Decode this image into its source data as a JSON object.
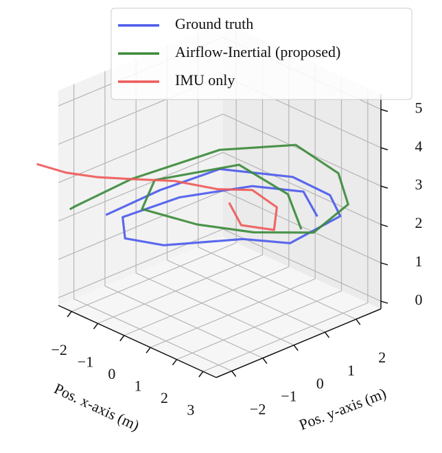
{
  "chart_data": {
    "type": "line3d",
    "xlabel": "Pos. x-axis (m)",
    "ylabel": "Pos. y-axis (m)",
    "xlim": [
      -2.5,
      3.5
    ],
    "ylim": [
      -2.5,
      2.8
    ],
    "zlim": [
      -0.2,
      5.4
    ],
    "xticks": [
      {
        "value": -2,
        "label": "−2"
      },
      {
        "value": -1,
        "label": "−1"
      },
      0,
      1,
      2,
      3
    ],
    "yticks": [
      {
        "value": -2,
        "label": "−2"
      },
      {
        "value": -1,
        "label": "−1"
      },
      0,
      1,
      2
    ],
    "zticks": [
      0,
      1,
      2,
      3,
      4,
      5
    ],
    "grid": true,
    "legend": "upper center",
    "series": [
      {
        "name": "Ground truth",
        "color": "#4a5aec",
        "x": [
          -1.4,
          -1.0,
          -0.5,
          0.5,
          1.8,
          2.9,
          3.0,
          1.8,
          0.8,
          -0.2,
          -1.0,
          -0.5,
          0.5,
          1.5,
          2.5
        ],
        "y": [
          -1.9,
          -0.5,
          1.0,
          2.5,
          2.6,
          2.0,
          0.3,
          -0.2,
          -1.9,
          -2.3,
          -1.7,
          -0.3,
          1.2,
          2.0,
          1.6
        ],
        "z": [
          2.3,
          2.6,
          2.8,
          2.4,
          2.3,
          2.3,
          2.2,
          2.1,
          2.2,
          2.2,
          2.3,
          2.5,
          2.6,
          2.5,
          2.3
        ]
      },
      {
        "name": "Airflow-Inertial (proposed)",
        "color": "#3a8a3a",
        "x": [
          -2.3,
          -2.0,
          -1.5,
          -0.5,
          0.5,
          2.0,
          3.2,
          3.3,
          2.2,
          1.0,
          -0.5,
          -1.2,
          0.0,
          1.5,
          2.6
        ],
        "y": [
          -2.3,
          -2.4,
          -1.0,
          1.0,
          2.6,
          2.7,
          2.0,
          0.8,
          -0.2,
          -1.0,
          -1.5,
          -0.5,
          1.2,
          1.5,
          1.0
        ],
        "z": [
          2.3,
          2.5,
          2.9,
          3.3,
          3.2,
          2.9,
          2.7,
          2.4,
          2.4,
          2.5,
          2.6,
          2.8,
          3.0,
          2.6,
          2.2
        ]
      },
      {
        "name": "IMU only",
        "color": "#ee5a5a",
        "x": [
          -3.2,
          -2.8,
          -2.2,
          -1.5,
          -0.8,
          0.0,
          0.5,
          1.2,
          1.8,
          1.5,
          0.8
        ],
        "y": [
          -2.6,
          -2.0,
          -1.5,
          -1.0,
          -0.2,
          0.5,
          1.2,
          1.4,
          0.8,
          0.0,
          0.2
        ],
        "z": [
          3.3,
          3.0,
          2.9,
          2.9,
          2.8,
          2.6,
          2.5,
          2.2,
          2.0,
          2.3,
          2.6
        ]
      }
    ]
  }
}
